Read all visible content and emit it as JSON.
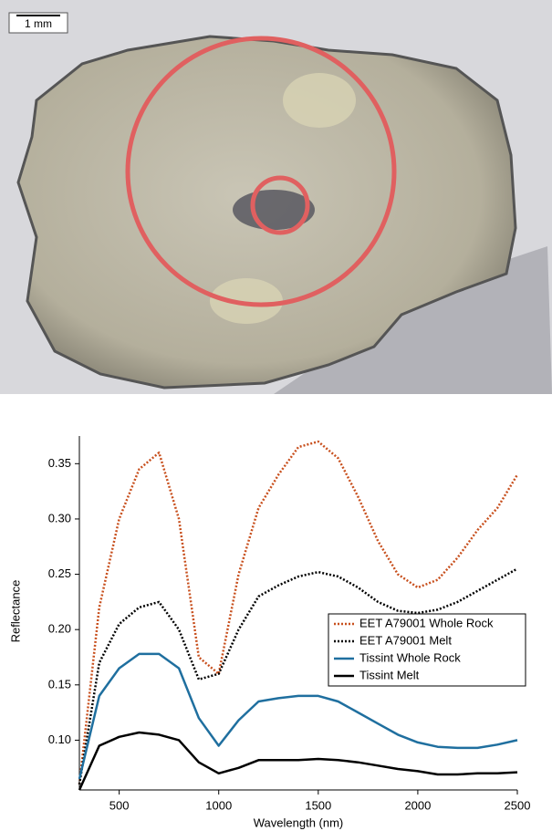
{
  "photo": {
    "scale_label": "1 mm"
  },
  "chart_data": {
    "type": "line",
    "y_label": "Reflectance",
    "x_label": "Wavelength (nm)",
    "x": [
      300,
      400,
      500,
      600,
      700,
      800,
      900,
      1000,
      1100,
      1200,
      1300,
      1400,
      1500,
      1600,
      1700,
      1800,
      1900,
      2000,
      2100,
      2200,
      2300,
      2400,
      2500
    ],
    "series": [
      {
        "name": "EET A79001 Whole Rock",
        "color": "#c8501e",
        "dash": "dotted",
        "values": [
          0.06,
          0.22,
          0.3,
          0.345,
          0.36,
          0.3,
          0.175,
          0.16,
          0.25,
          0.31,
          0.34,
          0.365,
          0.37,
          0.355,
          0.32,
          0.28,
          0.25,
          0.238,
          0.245,
          0.265,
          0.29,
          0.31,
          0.34
        ]
      },
      {
        "name": "EET A79001 Melt",
        "color": "#000000",
        "dash": "dotted",
        "values": [
          0.06,
          0.17,
          0.205,
          0.22,
          0.225,
          0.2,
          0.155,
          0.16,
          0.2,
          0.23,
          0.24,
          0.248,
          0.252,
          0.248,
          0.238,
          0.225,
          0.217,
          0.215,
          0.218,
          0.225,
          0.235,
          0.245,
          0.255
        ]
      },
      {
        "name": "Tissint Whole Rock",
        "color": "#1f6f9f",
        "dash": "solid",
        "values": [
          0.065,
          0.14,
          0.165,
          0.178,
          0.178,
          0.165,
          0.12,
          0.095,
          0.118,
          0.135,
          0.138,
          0.14,
          0.14,
          0.135,
          0.125,
          0.115,
          0.105,
          0.098,
          0.094,
          0.093,
          0.093,
          0.096,
          0.1
        ]
      },
      {
        "name": "Tissint Melt",
        "color": "#000000",
        "dash": "solid",
        "values": [
          0.055,
          0.095,
          0.103,
          0.107,
          0.105,
          0.1,
          0.08,
          0.07,
          0.075,
          0.082,
          0.082,
          0.082,
          0.083,
          0.082,
          0.08,
          0.077,
          0.074,
          0.072,
          0.069,
          0.069,
          0.07,
          0.07,
          0.071
        ]
      }
    ],
    "xlim": [
      300,
      2500
    ],
    "ylim": [
      0.055,
      0.375
    ],
    "xticks": [
      500,
      1000,
      1500,
      2000,
      2500
    ],
    "yticks": [
      {
        "value": 0.1,
        "label": "0.10"
      },
      0.15,
      {
        "value": 0.2,
        "label": "0.20"
      },
      0.25,
      {
        "value": 0.3,
        "label": "0.30"
      },
      0.35
    ],
    "grid": false,
    "legend": "lower-right"
  }
}
